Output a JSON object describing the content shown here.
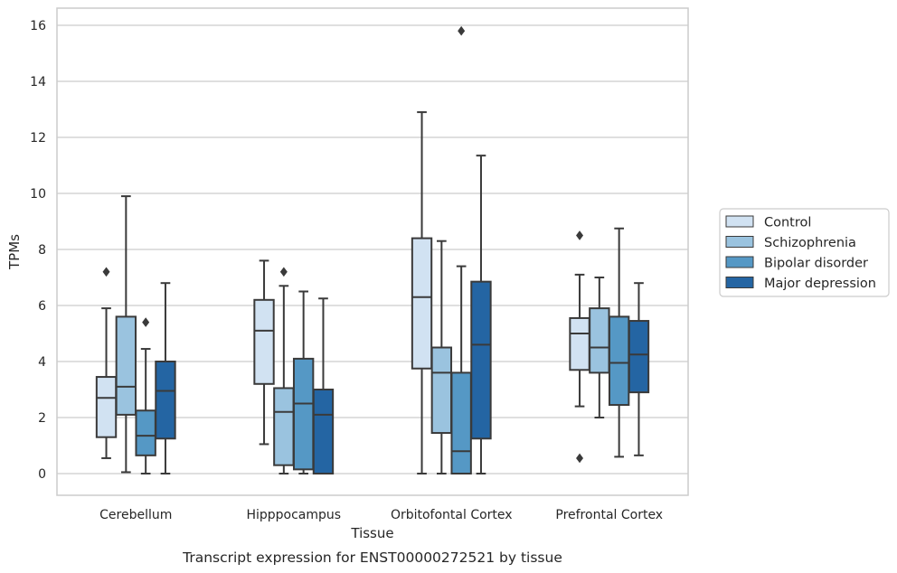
{
  "chart_data": {
    "type": "boxplot",
    "xlabel": "Tissue",
    "ylabel": "TPMs",
    "caption": "Transcript expression for ENST00000272521 by tissue",
    "ylim": [
      -0.75,
      16.6
    ],
    "yticks": [
      "0",
      "2",
      "4",
      "6",
      "8",
      "10",
      "12",
      "14",
      "16"
    ],
    "grid": true,
    "legend_position": "right, outside",
    "categories": [
      "Cerebellum",
      "Hipppocampus",
      "Orbitofontal Cortex",
      "Prefrontal Cortex"
    ],
    "series": [
      {
        "name": "Control",
        "color": "#d1e2f2",
        "boxes": [
          {
            "whislo": 0.55,
            "q1": 1.3,
            "med": 2.7,
            "q3": 3.45,
            "whishi": 5.9,
            "fliers": [
              7.2
            ]
          },
          {
            "whislo": 1.05,
            "q1": 3.2,
            "med": 5.1,
            "q3": 6.2,
            "whishi": 7.6,
            "fliers": []
          },
          {
            "whislo": 0.0,
            "q1": 3.75,
            "med": 6.3,
            "q3": 8.4,
            "whishi": 12.9,
            "fliers": []
          },
          {
            "whislo": 2.4,
            "q1": 3.7,
            "med": 5.0,
            "q3": 5.55,
            "whishi": 7.1,
            "fliers": [
              8.5,
              0.55
            ]
          }
        ]
      },
      {
        "name": "Schizophrenia",
        "color": "#9ac3df",
        "boxes": [
          {
            "whislo": 0.05,
            "q1": 2.1,
            "med": 3.1,
            "q3": 5.6,
            "whishi": 9.9,
            "fliers": []
          },
          {
            "whislo": 0.0,
            "q1": 0.3,
            "med": 2.2,
            "q3": 3.05,
            "whishi": 6.7,
            "fliers": [
              7.2
            ]
          },
          {
            "whislo": 0.0,
            "q1": 1.45,
            "med": 3.6,
            "q3": 4.5,
            "whishi": 8.3,
            "fliers": []
          },
          {
            "whislo": 2.0,
            "q1": 3.6,
            "med": 4.5,
            "q3": 5.9,
            "whishi": 7.0,
            "fliers": []
          }
        ]
      },
      {
        "name": "Bipolar disorder",
        "color": "#5598c5",
        "boxes": [
          {
            "whislo": 0.0,
            "q1": 0.65,
            "med": 1.35,
            "q3": 2.25,
            "whishi": 4.45,
            "fliers": [
              5.4
            ]
          },
          {
            "whislo": 0.0,
            "q1": 0.15,
            "med": 2.5,
            "q3": 4.1,
            "whishi": 6.5,
            "fliers": []
          },
          {
            "whislo": 0.0,
            "q1": 0.0,
            "med": 0.8,
            "q3": 3.6,
            "whishi": 7.4,
            "fliers": [
              15.8
            ]
          },
          {
            "whislo": 0.6,
            "q1": 2.45,
            "med": 3.95,
            "q3": 5.6,
            "whishi": 8.75,
            "fliers": []
          }
        ]
      },
      {
        "name": "Major depression",
        "color": "#2465a3",
        "boxes": [
          {
            "whislo": 0.0,
            "q1": 1.25,
            "med": 2.95,
            "q3": 4.0,
            "whishi": 6.8,
            "fliers": []
          },
          {
            "whislo": 0.0,
            "q1": 0.0,
            "med": 2.1,
            "q3": 3.0,
            "whishi": 6.25,
            "fliers": []
          },
          {
            "whislo": 0.0,
            "q1": 1.25,
            "med": 4.6,
            "q3": 6.85,
            "whishi": 11.35,
            "fliers": []
          },
          {
            "whislo": 0.65,
            "q1": 2.9,
            "med": 4.25,
            "q3": 5.45,
            "whishi": 6.8,
            "fliers": []
          }
        ]
      }
    ]
  }
}
